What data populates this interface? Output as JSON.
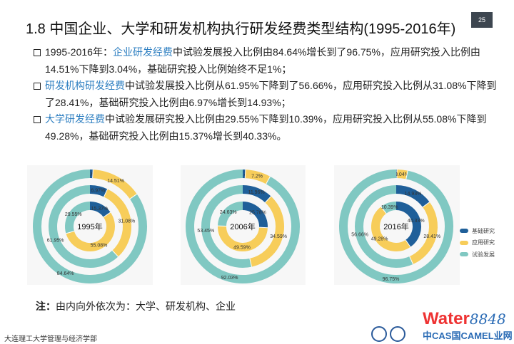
{
  "title": "1.8  中国企业、大学和研发机构执行研发经费类型结构(1995-2016年)",
  "page_number": "25",
  "bullets": [
    {
      "prefix": "1995-2016年：",
      "highlight": "企业研发经费",
      "text": "中试验发展投入比例由84.64%增长到了96.75%，应用研究投入比例由14.51%下降到3.04%，基础研究投入比例始终不足1%；"
    },
    {
      "prefix": "",
      "highlight": "研发机构研发经费",
      "text": "中试验发展投入比例从61.95%下降到了56.66%，应用研究投入比例从31.08%下降到了28.41%，基础研究投入比例由6.97%增长到14.93%；"
    },
    {
      "prefix": "",
      "highlight": "大学研发经费",
      "text": "中试验发展研究投入比例由29.55%下降到10.39%，应用研究投入比例从55.08%下降到49.28%，基础研究投入比例由15.37%增长到40.33%。"
    }
  ],
  "note": {
    "label": "注：",
    "text": "由内向外依次为：大学、研发机构、企业"
  },
  "footer": "大连理工大学管理与经济学部",
  "watermark": {
    "main": "Water",
    "num": "8848",
    "sub": ".com",
    "line2": "中CAS 国CAMEL 业 网"
  },
  "colors": {
    "basic": "#1f5f99",
    "applied": "#f7cd5a",
    "experimental": "#80c8c2"
  },
  "chart_data": [
    {
      "type": "pie",
      "variant": "nested-donut",
      "center_label": "1995年",
      "categories": [
        "基础研究",
        "应用研究",
        "试验发展"
      ],
      "rings": [
        {
          "level": "大学",
          "values": [
            15.37,
            55.08,
            29.55
          ],
          "labels": [
            "15.37%",
            "55.08%",
            "29.55%"
          ]
        },
        {
          "level": "研发机构",
          "values": [
            6.97,
            31.08,
            61.95
          ],
          "labels": [
            "6.97%",
            "31.08%",
            "61.95%"
          ]
        },
        {
          "level": "企业",
          "values": [
            0.85,
            14.51,
            84.64
          ],
          "labels": [
            "0.85%",
            "14.51%",
            "84.64%"
          ]
        }
      ]
    },
    {
      "type": "pie",
      "variant": "nested-donut",
      "center_label": "2006年",
      "categories": [
        "基础研究",
        "应用研究",
        "试验发展"
      ],
      "rings": [
        {
          "level": "大学",
          "values": [
            25.78,
            49.59,
            24.63
          ],
          "labels": [
            "25.78%",
            "49.59%",
            "24.63%"
          ]
        },
        {
          "level": "研发机构",
          "values": [
            11.96,
            34.59,
            53.45
          ],
          "labels": [
            "11.96%",
            "34.59%",
            "53.45%"
          ]
        },
        {
          "level": "企业",
          "values": [
            0.77,
            7.2,
            92.03
          ],
          "labels": [
            "0.77%",
            "7.2%",
            "92.03%"
          ]
        }
      ]
    },
    {
      "type": "pie",
      "variant": "nested-donut",
      "center_label": "2016年",
      "categories": [
        "基础研究",
        "应用研究",
        "试验发展"
      ],
      "rings": [
        {
          "level": "大学",
          "values": [
            40.33,
            49.28,
            10.39
          ],
          "labels": [
            "40.33%",
            "49.28%",
            "10.39%"
          ]
        },
        {
          "level": "研发机构",
          "values": [
            14.93,
            28.41,
            56.66
          ],
          "labels": [
            "14.93%",
            "28.41%",
            "56.66%"
          ]
        },
        {
          "level": "企业",
          "values": [
            0.21,
            3.04,
            96.75
          ],
          "labels": [
            "",
            "3.04%",
            "96.75%"
          ]
        }
      ]
    }
  ],
  "legend": {
    "placement": "right",
    "items": [
      "基础研究",
      "应用研究",
      "试验发展"
    ]
  }
}
